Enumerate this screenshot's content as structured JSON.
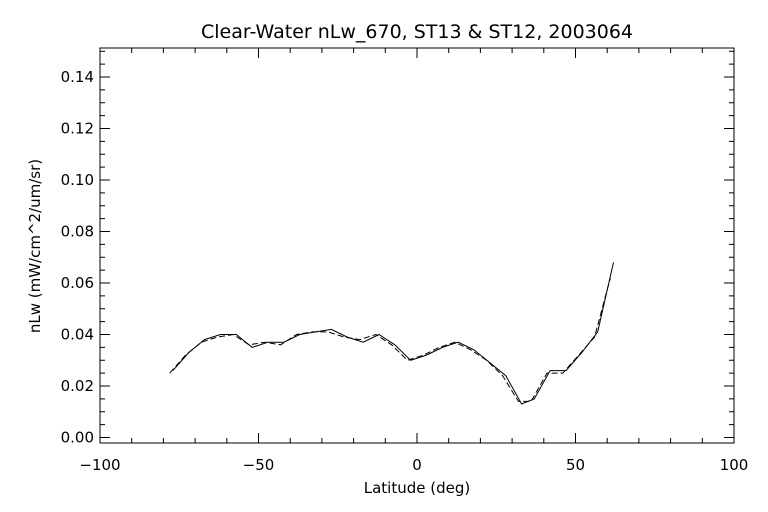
{
  "chart_data": {
    "type": "line",
    "title": "Clear-Water nLw_670, ST13 & ST12, 2003064",
    "xlabel": "Latitude (deg)",
    "ylabel": "nLw (mW/cm^2/um/sr)",
    "xlim": [
      -100,
      100
    ],
    "ylim": [
      0.0,
      0.15
    ],
    "xticks": [
      -100,
      -50,
      0,
      50,
      100
    ],
    "xtick_labels": [
      "−100",
      "−50",
      "0",
      "50",
      "100"
    ],
    "yticks": [
      0.0,
      0.02,
      0.04,
      0.06,
      0.08,
      0.1,
      0.12,
      0.14
    ],
    "ytick_labels": [
      "0.00",
      "0.02",
      "0.04",
      "0.06",
      "0.08",
      "0.10",
      "0.12",
      "0.14"
    ],
    "grid": false,
    "series": [
      {
        "style": "solid",
        "color": "#000000",
        "x": [
          -77,
          -72,
          -67,
          -62,
          -57,
          -52,
          -47,
          -42,
          -37,
          -32,
          -27,
          -22,
          -17,
          -12,
          -7,
          -2,
          3,
          8,
          13,
          18,
          23,
          28,
          33,
          37,
          42,
          47,
          52,
          57,
          62
        ],
        "y": [
          0.026,
          0.033,
          0.038,
          0.04,
          0.04,
          0.035,
          0.037,
          0.037,
          0.04,
          0.041,
          0.042,
          0.039,
          0.037,
          0.04,
          0.036,
          0.03,
          0.032,
          0.035,
          0.037,
          0.034,
          0.029,
          0.024,
          0.013,
          0.015,
          0.026,
          0.026,
          0.033,
          0.041,
          0.068
        ]
      },
      {
        "style": "dashed",
        "color": "#000000",
        "x": [
          -78,
          -73,
          -68,
          -63,
          -58,
          -53,
          -48,
          -43,
          -38,
          -33,
          -28,
          -23,
          -18,
          -13,
          -8,
          -3,
          2,
          7,
          12,
          17,
          22,
          27,
          32,
          36,
          41,
          46,
          51,
          56,
          61
        ],
        "y": [
          0.025,
          0.032,
          0.037,
          0.039,
          0.04,
          0.036,
          0.037,
          0.036,
          0.04,
          0.041,
          0.041,
          0.039,
          0.038,
          0.04,
          0.036,
          0.03,
          0.032,
          0.035,
          0.037,
          0.034,
          0.03,
          0.024,
          0.014,
          0.014,
          0.025,
          0.025,
          0.032,
          0.039,
          0.062
        ]
      }
    ]
  }
}
